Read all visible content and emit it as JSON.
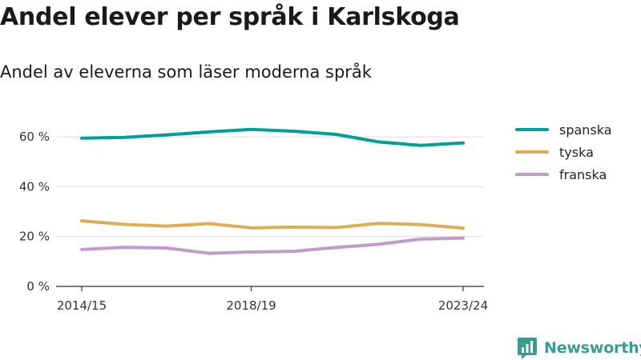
{
  "title": "Andel elever per språk i Karlskoga",
  "subtitle": "Andel av eleverna som läser moderna språk",
  "brand": {
    "name": "Newsworthy",
    "color": "#3a9a96",
    "icon": "newsworthy-logo-icon"
  },
  "chart_data": {
    "type": "line",
    "x": [
      "2014/15",
      "2015/16",
      "2016/17",
      "2017/18",
      "2018/19",
      "2019/20",
      "2020/21",
      "2021/22",
      "2022/23",
      "2023/24"
    ],
    "x_tick_labels": [
      "2014/15",
      "2018/19",
      "2023/24"
    ],
    "y_ticks": [
      0,
      20,
      40,
      60
    ],
    "y_tick_labels": [
      "0 %",
      "20 %",
      "40 %",
      "60 %"
    ],
    "ylim": [
      0,
      70
    ],
    "grid": true,
    "legend_position": "right",
    "series": [
      {
        "name": "spanska",
        "color": "#00a096",
        "values": [
          59.5,
          59.8,
          60.8,
          62.0,
          63.0,
          62.3,
          61.0,
          58.0,
          56.6,
          57.6
        ]
      },
      {
        "name": "tyska",
        "color": "#dcad55",
        "values": [
          26.3,
          24.9,
          24.2,
          25.2,
          23.5,
          23.8,
          23.6,
          25.3,
          24.8,
          23.4
        ]
      },
      {
        "name": "franska",
        "color": "#c39acb",
        "values": [
          14.8,
          15.7,
          15.4,
          13.3,
          13.8,
          14.1,
          15.6,
          16.9,
          19.0,
          19.4
        ]
      }
    ]
  }
}
